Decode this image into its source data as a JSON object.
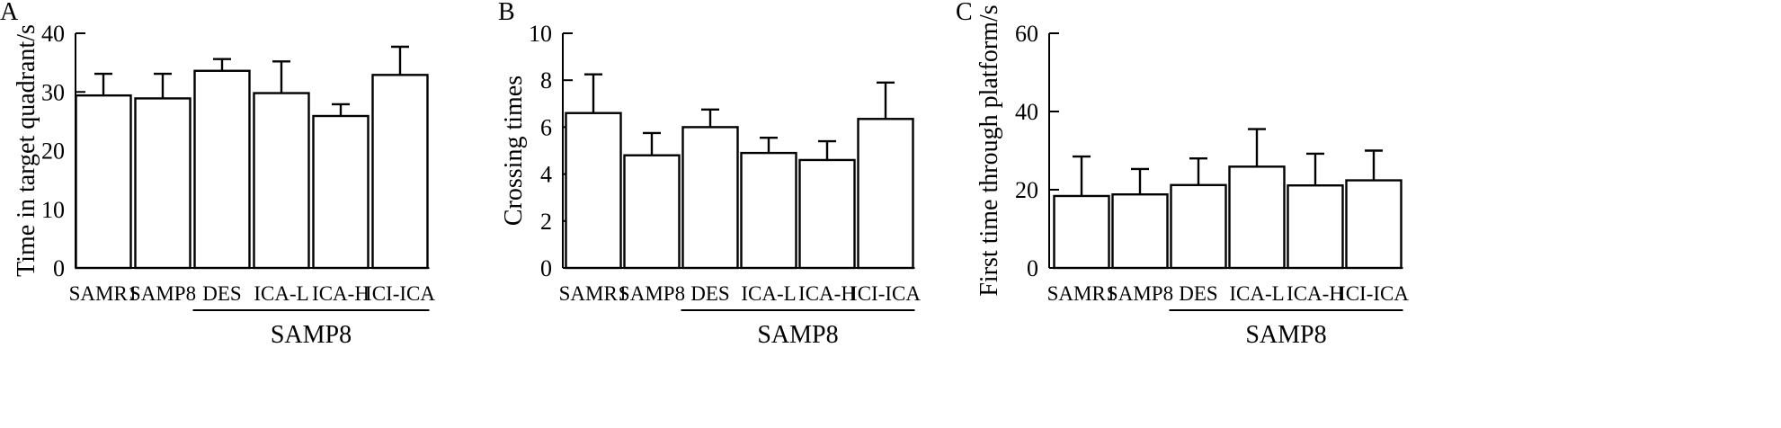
{
  "chart_data": [
    {
      "panel": "A",
      "type": "bar",
      "ylabel": "Time in target quadrant/s",
      "xlabel": "",
      "categories": [
        "SAMR1",
        "SAMP8",
        "DES",
        "ICA-L",
        "ICA-H",
        "ICI-ICA"
      ],
      "group_label": "SAMP8",
      "group_start": 2,
      "values": [
        29.4,
        28.9,
        33.6,
        29.8,
        25.9,
        32.9
      ],
      "errors": [
        3.7,
        4.2,
        2.0,
        5.4,
        2.0,
        4.8
      ],
      "ylim": [
        0,
        40
      ],
      "yticks": [
        0,
        10,
        20,
        30,
        40
      ],
      "grid": false
    },
    {
      "panel": "B",
      "type": "bar",
      "ylabel": "Crossing times",
      "xlabel": "",
      "categories": [
        "SAMR1",
        "SAMP8",
        "DES",
        "ICA-L",
        "ICA-H",
        "ICI-ICA"
      ],
      "group_label": "SAMP8",
      "group_start": 2,
      "values": [
        6.6,
        4.8,
        6.0,
        4.9,
        4.6,
        6.35
      ],
      "errors": [
        1.65,
        0.95,
        0.75,
        0.65,
        0.8,
        1.55
      ],
      "ylim": [
        0,
        10
      ],
      "yticks": [
        0,
        2,
        4,
        6,
        8,
        10
      ],
      "grid": false
    },
    {
      "panel": "C",
      "type": "bar",
      "ylabel": "First time through platform/s",
      "xlabel": "",
      "categories": [
        "SAMR1",
        "SAMP8",
        "DES",
        "ICA-L",
        "ICA-H",
        "ICI-ICA"
      ],
      "group_label": "SAMP8",
      "group_start": 2,
      "values": [
        18.4,
        18.8,
        21.2,
        25.9,
        21.1,
        22.4
      ],
      "errors": [
        10.1,
        6.5,
        6.8,
        9.6,
        8.1,
        7.6
      ],
      "ylim": [
        0,
        60
      ],
      "yticks": [
        0,
        20,
        40,
        60
      ],
      "grid": false
    }
  ]
}
